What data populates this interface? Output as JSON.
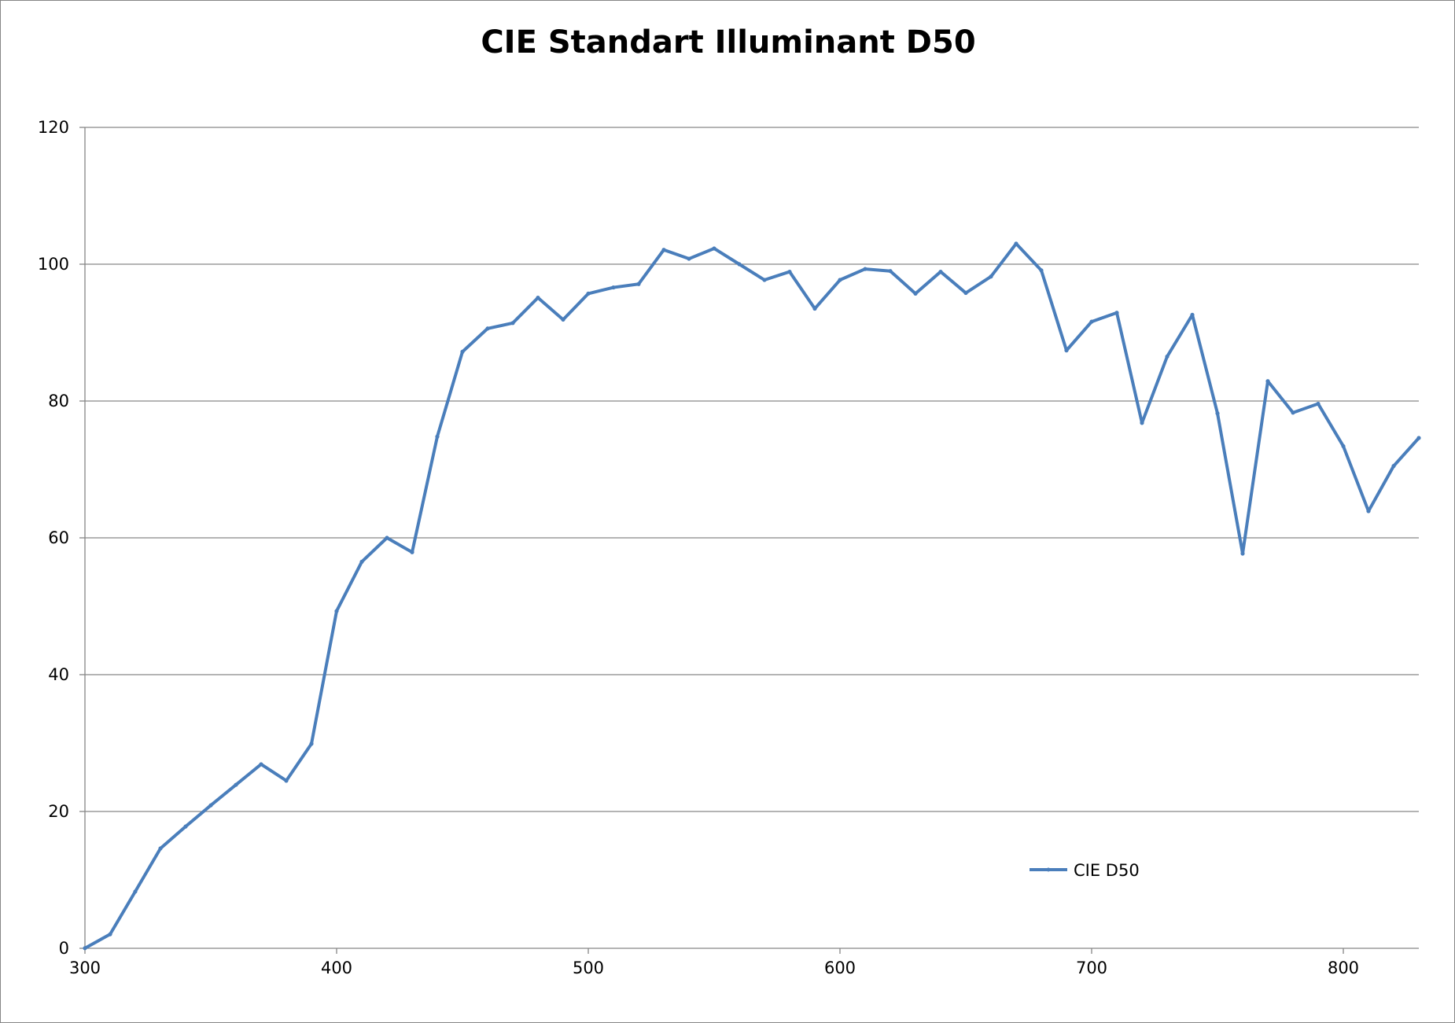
{
  "chart_data": {
    "type": "line",
    "title": "CIE Standart Illuminant D50",
    "xlabel": "",
    "ylabel": "",
    "xlim": [
      300,
      830
    ],
    "ylim": [
      0,
      120
    ],
    "x_ticks": [
      300,
      400,
      500,
      600,
      700,
      800
    ],
    "y_ticks": [
      0,
      20,
      40,
      60,
      80,
      100,
      120
    ],
    "grid": "horizontal major gridlines",
    "legend_position": "bottom-right, inside plot",
    "series": [
      {
        "name": "CIE D50",
        "color": "#4a7ebb",
        "marker": "small circle",
        "x": [
          300,
          310,
          320,
          330,
          340,
          350,
          360,
          370,
          380,
          390,
          400,
          410,
          420,
          430,
          440,
          450,
          460,
          470,
          480,
          490,
          500,
          510,
          520,
          530,
          540,
          550,
          560,
          570,
          580,
          590,
          600,
          610,
          620,
          630,
          640,
          650,
          660,
          670,
          680,
          690,
          700,
          710,
          720,
          730,
          740,
          750,
          760,
          770,
          780,
          790,
          800,
          810,
          820,
          830
        ],
        "values": [
          0.02,
          2.05,
          8.3,
          14.6,
          17.8,
          20.9,
          23.9,
          26.9,
          24.5,
          29.9,
          49.3,
          56.5,
          60.0,
          57.9,
          74.8,
          87.2,
          90.6,
          91.4,
          95.1,
          91.9,
          95.7,
          96.6,
          97.1,
          102.1,
          100.8,
          102.3,
          100.0,
          97.7,
          98.9,
          93.5,
          97.7,
          99.3,
          99.0,
          95.7,
          98.9,
          95.8,
          98.2,
          103.0,
          99.1,
          87.4,
          91.6,
          92.9,
          76.8,
          86.5,
          92.6,
          78.2,
          57.7,
          82.9,
          78.3,
          79.6,
          73.4,
          63.9,
          70.5,
          74.6
        ]
      }
    ]
  }
}
